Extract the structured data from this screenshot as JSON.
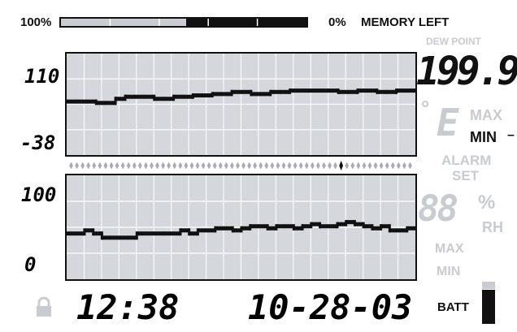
{
  "memory": {
    "full_label": "100%",
    "empty_label": "0%",
    "title": "MEMORY LEFT",
    "used_fraction": 0.49,
    "segments": 5
  },
  "top_axis": {
    "max": "110",
    "min": "-38"
  },
  "bottom_axis": {
    "max": "100",
    "min": "0"
  },
  "right_panel": {
    "dew_point": "DEW POINT",
    "value": "199.9",
    "unit_degree": "°",
    "unit_letter": "E",
    "max": "MAX",
    "min": "MIN",
    "min_marker": "–",
    "alarm": "ALARM",
    "set": "SET",
    "rh_digits": "88",
    "rh_percent": "%",
    "rh": "RH",
    "rh_max": "MAX",
    "rh_min": "MIN"
  },
  "time": "12:38",
  "date": "10-28-03",
  "batt": "BATT",
  "timeline": {
    "count": 60,
    "selected_index": 47
  },
  "chart_data": [
    {
      "type": "line",
      "name": "temperature",
      "ylim": [
        -38,
        110
      ],
      "values": [
        40,
        40,
        40,
        38,
        38,
        44,
        47,
        47,
        47,
        44,
        44,
        47,
        47,
        49,
        49,
        51,
        51,
        54,
        54,
        51,
        51,
        54,
        54,
        56,
        56,
        56,
        56,
        56,
        54,
        54,
        56,
        56,
        54,
        54,
        56,
        56
      ]
    },
    {
      "type": "line",
      "name": "humidity",
      "ylim": [
        0,
        100
      ],
      "values": [
        44,
        44,
        47,
        44,
        40,
        40,
        40,
        40,
        44,
        44,
        44,
        44,
        44,
        47,
        44,
        47,
        47,
        49,
        49,
        47,
        49,
        51,
        51,
        49,
        51,
        51,
        49,
        51,
        53,
        51,
        51,
        53,
        55,
        53,
        51,
        49,
        51,
        47,
        47,
        49
      ]
    }
  ]
}
